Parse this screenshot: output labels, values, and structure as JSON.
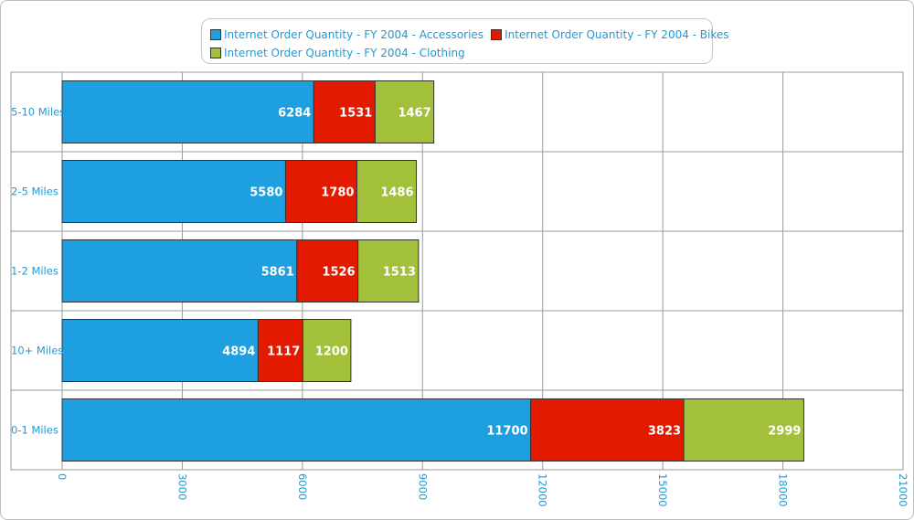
{
  "chart_data": {
    "type": "bar",
    "orientation": "horizontal",
    "stacked": true,
    "categories": [
      "5-10 Miles",
      "2-5 Miles",
      "1-2 Miles",
      "10+ Miles",
      "0-1 Miles"
    ],
    "series": [
      {
        "name": "Internet Order Quantity - FY 2004 - Accessories",
        "color": "#1e9fe0",
        "values": [
          6284,
          5580,
          5861,
          4894,
          11700
        ]
      },
      {
        "name": "Internet Order Quantity - FY 2004 - Bikes",
        "color": "#e31a00",
        "values": [
          1531,
          1780,
          1526,
          1117,
          3823
        ]
      },
      {
        "name": "Internet Order Quantity - FY 2004 - Clothing",
        "color": "#a2c03a",
        "values": [
          1467,
          1486,
          1513,
          1200,
          2999
        ]
      }
    ],
    "xticks": [
      "0",
      "3000",
      "6000",
      "9000",
      "12000",
      "15000",
      "18000",
      "21000"
    ],
    "xlim": [
      0,
      21000
    ],
    "grid": true,
    "legend_position": "top"
  }
}
